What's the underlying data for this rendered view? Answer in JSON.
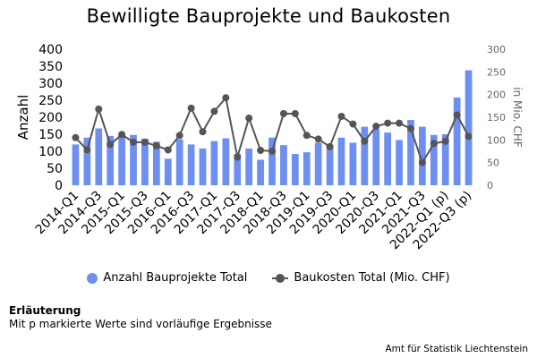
{
  "chart_data": {
    "type": "bar",
    "title": "Bewilligte Bauprojekte und Baukosten",
    "ylabel": "Anzahl",
    "y2label": "in Mio. CHF",
    "ylim": [
      0,
      400
    ],
    "yticks": [
      0,
      50,
      100,
      150,
      200,
      250,
      300,
      350,
      400
    ],
    "y2lim": [
      0,
      300
    ],
    "y2ticks": [
      0,
      50,
      100,
      150,
      200,
      250,
      300
    ],
    "categories": [
      "2014-Q1",
      "2014-Q2",
      "2014-Q3",
      "2014-Q4",
      "2015-Q1",
      "2015-Q2",
      "2015-Q3",
      "2015-Q4",
      "2016-Q1",
      "2016-Q2",
      "2016-Q3",
      "2016-Q4",
      "2017-Q1",
      "2017-Q2",
      "2017-Q3",
      "2017-Q4",
      "2018-Q1",
      "2018-Q2",
      "2018-Q3",
      "2018-Q4",
      "2019-Q1",
      "2019-Q2",
      "2019-Q3",
      "2019-Q4",
      "2020-Q1",
      "2020-Q2",
      "2020-Q3",
      "2020-Q4",
      "2021-Q1",
      "2021-Q2",
      "2021-Q3",
      "2021-Q4",
      "2022-Q1 (p)",
      "2022-Q2 (p)",
      "2022-Q3 (p)"
    ],
    "xticks_shown": [
      "2014-Q1",
      "2014-Q3",
      "2015-Q1",
      "2015-Q3",
      "2016-Q1",
      "2016-Q3",
      "2017-Q1",
      "2017-Q3",
      "2018-Q1",
      "2018-Q3",
      "2019-Q1",
      "2019-Q3",
      "2020-Q1",
      "2020-Q3",
      "2021-Q1",
      "2021-Q3",
      "2022-Q1 (p)",
      "2022-Q3 (p)"
    ],
    "series": [
      {
        "name": "Anzahl Bauprojekte Total",
        "type": "bar",
        "axis": "left",
        "color": "#6d8ff0",
        "values": [
          120,
          140,
          167,
          145,
          148,
          148,
          137,
          128,
          78,
          135,
          120,
          108,
          130,
          138,
          92,
          108,
          75,
          140,
          118,
          92,
          97,
          125,
          118,
          140,
          125,
          172,
          165,
          155,
          133,
          192,
          172,
          148,
          150,
          258,
          338
        ]
      },
      {
        "name": "Baukosten Total (Mio. CHF)",
        "type": "line",
        "axis": "right",
        "color": "#555555",
        "values": [
          105,
          78,
          168,
          90,
          112,
          95,
          95,
          87,
          78,
          110,
          170,
          118,
          163,
          193,
          62,
          148,
          77,
          75,
          158,
          158,
          110,
          102,
          85,
          152,
          135,
          97,
          130,
          137,
          137,
          125,
          50,
          92,
          97,
          155,
          108
        ]
      }
    ],
    "legend_position": "bottom",
    "grid": false
  },
  "notes": {
    "heading": "Erläuterung",
    "text": "Mit p markierte Werte sind vorläufige Ergebnisse"
  },
  "source": "Amt für Statistik Liechtenstein"
}
